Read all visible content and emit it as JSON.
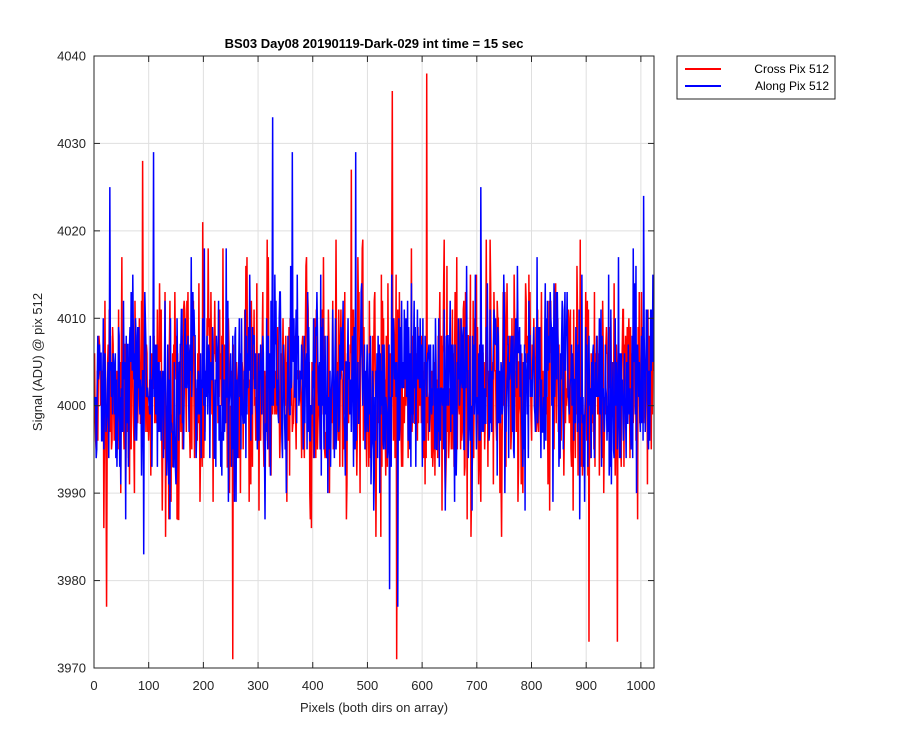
{
  "chart_data": {
    "type": "line",
    "title": "BS03 Day08 20190119-Dark-029 int time = 15 sec",
    "xlabel": "Pixels (both dirs on array)",
    "ylabel": "Signal (ADU) @ pix 512",
    "xlim": [
      0,
      1024
    ],
    "ylim": [
      3970,
      4040
    ],
    "xticks": [
      "0",
      "100",
      "200",
      "300",
      "400",
      "500",
      "600",
      "700",
      "800",
      "900",
      "1000"
    ],
    "yticks": [
      "3970",
      "3980",
      "3990",
      "4000",
      "4010",
      "4020",
      "4030",
      "4040"
    ],
    "grid": true,
    "legend_position": "outside-top-right",
    "series": [
      {
        "name": "Cross Pix 512",
        "color": "#ff0000",
        "n_points": 1024,
        "mean": 4002,
        "std": 6.5,
        "extremes": [
          {
            "x": 545,
            "y": 4036
          },
          {
            "x": 608,
            "y": 4038
          },
          {
            "x": 253,
            "y": 3971
          },
          {
            "x": 553,
            "y": 3971
          },
          {
            "x": 905,
            "y": 3973
          },
          {
            "x": 957,
            "y": 3973
          },
          {
            "x": 22,
            "y": 3977
          },
          {
            "x": 88,
            "y": 4028
          },
          {
            "x": 198,
            "y": 4021
          },
          {
            "x": 470,
            "y": 4027
          }
        ]
      },
      {
        "name": "Along Pix 512",
        "color": "#0000ff",
        "n_points": 1024,
        "mean": 4002.5,
        "std": 6,
        "extremes": [
          {
            "x": 326,
            "y": 4033
          },
          {
            "x": 108,
            "y": 4029
          },
          {
            "x": 478,
            "y": 4029
          },
          {
            "x": 362,
            "y": 4029
          },
          {
            "x": 555,
            "y": 3977
          },
          {
            "x": 540,
            "y": 3979
          },
          {
            "x": 28,
            "y": 4025
          },
          {
            "x": 707,
            "y": 4025
          },
          {
            "x": 1005,
            "y": 4024
          },
          {
            "x": 90,
            "y": 3983
          }
        ]
      }
    ]
  }
}
